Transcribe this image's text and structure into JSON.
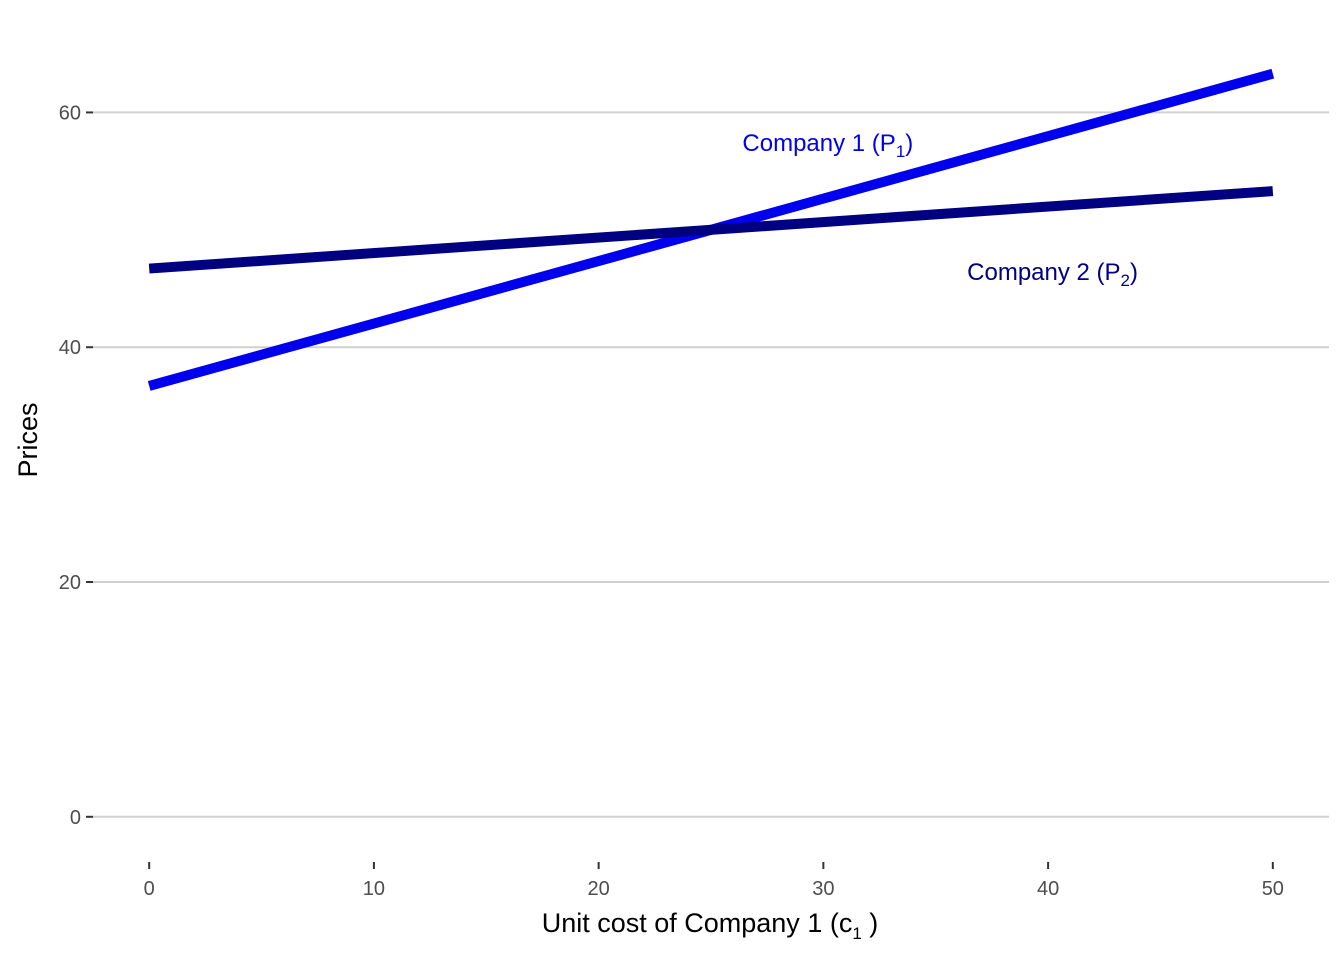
{
  "colors": {
    "background": "#ffffff",
    "gridline": "#d0d0d0",
    "tick": "#333333",
    "tick_text": "#4d4d4d"
  },
  "chart_data": {
    "type": "line",
    "title": "",
    "xlabel": {
      "main": "Unit cost of Company 1  (c",
      "sub": "1",
      "tail": " )"
    },
    "ylabel": "Prices",
    "xlim": [
      -2.5,
      52.5
    ],
    "ylim": [
      -3,
      66
    ],
    "x_ticks": [
      0,
      10,
      20,
      30,
      40,
      50
    ],
    "y_ticks": [
      0,
      20,
      40,
      60
    ],
    "grid": {
      "horizontal": true,
      "vertical": false
    },
    "series": [
      {
        "key": "company1",
        "label": {
          "main": "Company 1 (P",
          "sub": "1",
          "tail": ")"
        },
        "color": "#0000ee",
        "x": [
          0,
          50
        ],
        "y": [
          36.7,
          63.3
        ],
        "label_at": {
          "x": 30.2,
          "y": 57.5
        }
      },
      {
        "key": "company2",
        "label": {
          "main": "Company 2 (P",
          "sub": "2",
          "tail": ")"
        },
        "color": "#000080",
        "x": [
          0,
          50
        ],
        "y": [
          46.7,
          53.3
        ],
        "label_at": {
          "x": 40.2,
          "y": 46.5
        }
      }
    ]
  }
}
